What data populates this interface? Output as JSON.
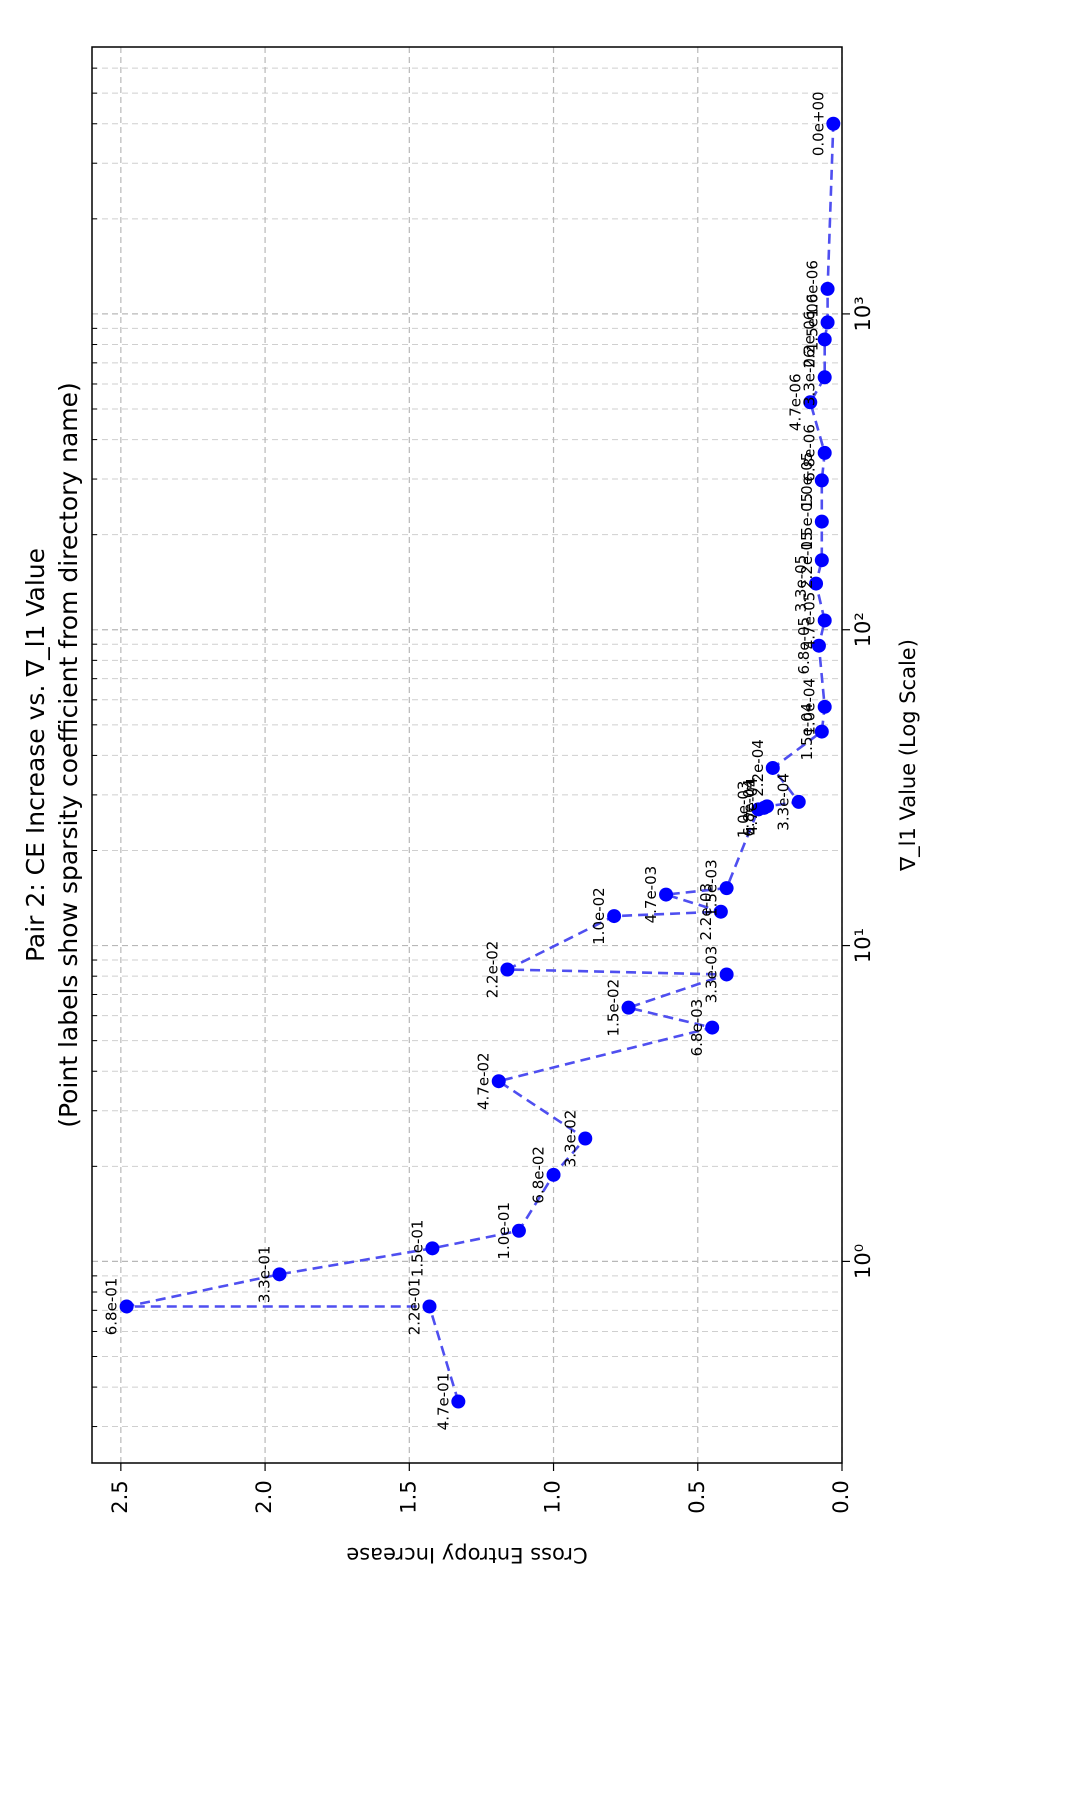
{
  "chart_data": {
    "type": "line",
    "orientation": "rotated-90-counterclockwise",
    "title": "Pair 2: CE Increase vs. ∇_l1 Value",
    "subtitle": "(Point labels show sparsity coefficient from directory name)",
    "xlabel": "∇_l1 Value (Log Scale)",
    "ylabel": "Cross Entropy Increase",
    "xscale": "log",
    "xlim": [
      0.23,
      7000
    ],
    "ylim": [
      0.0,
      2.6
    ],
    "x_ticks": [
      {
        "value": 1,
        "label": "10⁰"
      },
      {
        "value": 10,
        "label": "10¹"
      },
      {
        "value": 100,
        "label": "10²"
      },
      {
        "value": 1000,
        "label": "10³"
      }
    ],
    "y_ticks": [
      {
        "value": 0.0,
        "label": "0.0"
      },
      {
        "value": 0.5,
        "label": "0.5"
      },
      {
        "value": 1.0,
        "label": "1.0"
      },
      {
        "value": 1.5,
        "label": "1.5"
      },
      {
        "value": 2.0,
        "label": "2.0"
      },
      {
        "value": 2.5,
        "label": "2.5"
      }
    ],
    "grid": true,
    "series_color": "#0000ff",
    "line_color": "#4f4ff0",
    "series": [
      {
        "name": "CE increase",
        "points": [
          {
            "x": 0.36,
            "y": 1.33,
            "label": "4.7e-01"
          },
          {
            "x": 0.72,
            "y": 1.43,
            "label": "2.2e-01"
          },
          {
            "x": 0.72,
            "y": 2.48,
            "label": "6.8e-01"
          },
          {
            "x": 0.91,
            "y": 1.95,
            "label": "3.3e-01"
          },
          {
            "x": 1.1,
            "y": 1.42,
            "label": "1.5e-01"
          },
          {
            "x": 1.25,
            "y": 1.12,
            "label": "1.0e-01"
          },
          {
            "x": 1.88,
            "y": 1.0,
            "label": "6.8e-02"
          },
          {
            "x": 2.45,
            "y": 0.89,
            "label": "3.3e-02"
          },
          {
            "x": 3.72,
            "y": 1.19,
            "label": "4.7e-02"
          },
          {
            "x": 5.5,
            "y": 0.45,
            "label": "6.8e-03"
          },
          {
            "x": 6.36,
            "y": 0.74,
            "label": "1.5e-02"
          },
          {
            "x": 8.1,
            "y": 0.4,
            "label": "3.3e-03"
          },
          {
            "x": 8.4,
            "y": 1.16,
            "label": "2.2e-02"
          },
          {
            "x": 12.4,
            "y": 0.79,
            "label": "1.0e-02"
          },
          {
            "x": 12.8,
            "y": 0.42,
            "label": "2.2e-03"
          },
          {
            "x": 14.5,
            "y": 0.61,
            "label": "4.7e-03"
          },
          {
            "x": 15.2,
            "y": 0.4,
            "label": "1.5e-03"
          },
          {
            "x": 27.0,
            "y": 0.29,
            "label": "1.0e-03"
          },
          {
            "x": 27.3,
            "y": 0.27,
            "label": "6.8e-04"
          },
          {
            "x": 27.6,
            "y": 0.26,
            "label": "4.7e-04"
          },
          {
            "x": 28.5,
            "y": 0.15,
            "label": "3.3e-04"
          },
          {
            "x": 36.5,
            "y": 0.24,
            "label": "2.2e-04"
          },
          {
            "x": 47.6,
            "y": 0.07,
            "label": "1.5e-04"
          },
          {
            "x": 57.0,
            "y": 0.06,
            "label": "1.0e-04"
          },
          {
            "x": 89.0,
            "y": 0.08,
            "label": "6.8e-05"
          },
          {
            "x": 107.0,
            "y": 0.06,
            "label": "4.7e-05"
          },
          {
            "x": 140.0,
            "y": 0.09,
            "label": "3.3e-05"
          },
          {
            "x": 166.0,
            "y": 0.07,
            "label": "2.2e-05"
          },
          {
            "x": 220.0,
            "y": 0.07,
            "label": "1.5e-05"
          },
          {
            "x": 297.0,
            "y": 0.07,
            "label": "1.0e-05"
          },
          {
            "x": 363.0,
            "y": 0.06,
            "label": "6.8e-06"
          },
          {
            "x": 525.0,
            "y": 0.11,
            "label": "4.7e-06"
          },
          {
            "x": 630.0,
            "y": 0.06,
            "label": "3.3e-06"
          },
          {
            "x": 830.0,
            "y": 0.06,
            "label": "2.2e-06"
          },
          {
            "x": 940.0,
            "y": 0.05,
            "label": "1.5e-06"
          },
          {
            "x": 1200.0,
            "y": 0.05,
            "label": "1.0e-06"
          },
          {
            "x": 4000.0,
            "y": 0.03,
            "label": "0.0e+00"
          }
        ]
      }
    ]
  }
}
